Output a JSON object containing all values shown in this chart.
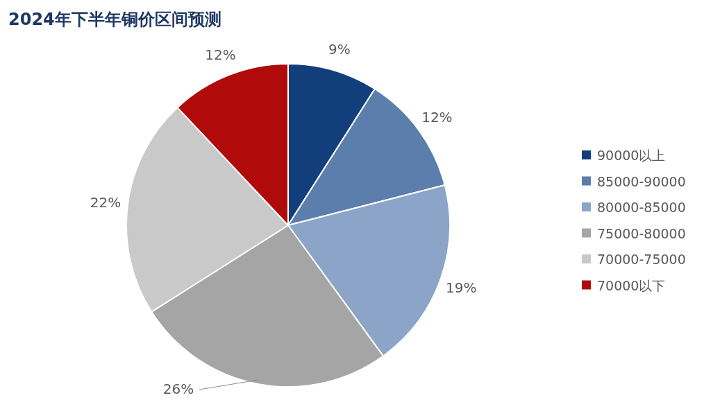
{
  "chart_data": {
    "type": "pie",
    "title": "2024年下半年铜价区间预测",
    "categories": [
      "90000以上",
      "85000-90000",
      "80000-85000",
      "75000-80000",
      "70000-75000",
      "70000以下"
    ],
    "values": [
      9,
      12,
      19,
      26,
      22,
      12
    ],
    "colors": [
      "#123f7c",
      "#5b7eac",
      "#8ba4c7",
      "#a5a5a5",
      "#c9c9c9",
      "#b10a0a"
    ],
    "value_labels": [
      "9%",
      "12%",
      "19%",
      "26%",
      "22%",
      "12%"
    ],
    "legend": "right"
  }
}
